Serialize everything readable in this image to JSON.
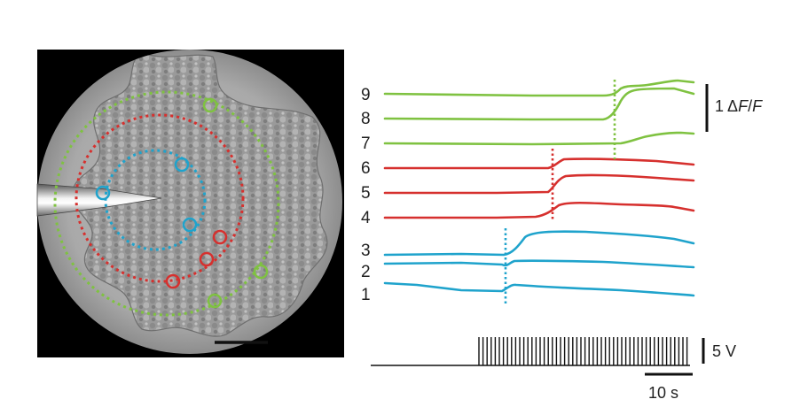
{
  "colors": {
    "inner": "#1fa3cc",
    "middle": "#d6302e",
    "outer": "#7fc241",
    "stim": "#111111",
    "label": "#222222"
  },
  "micrograph": {
    "description_icon": "cell-monolayer-micrograph",
    "pipette_icon": "micropipette",
    "scale_bar_icon": "scale-bar"
  },
  "traces": {
    "labels": [
      "1",
      "2",
      "3",
      "4",
      "5",
      "6",
      "7",
      "8",
      "9"
    ],
    "groups": [
      {
        "name": "inner",
        "cells": [
          "1",
          "2",
          "3"
        ]
      },
      {
        "name": "middle",
        "cells": [
          "4",
          "5",
          "6"
        ]
      },
      {
        "name": "outer",
        "cells": [
          "7",
          "8",
          "9"
        ]
      }
    ]
  },
  "scale_bars": {
    "fluorescence": "1 ΔF/F",
    "fluorescence_prefix": "1 ",
    "fluorescence_delta": "Δ",
    "fluorescence_f1": "F",
    "fluorescence_slash": "/",
    "fluorescence_f2": "F",
    "voltage": "5 V",
    "time": "10 s"
  }
}
